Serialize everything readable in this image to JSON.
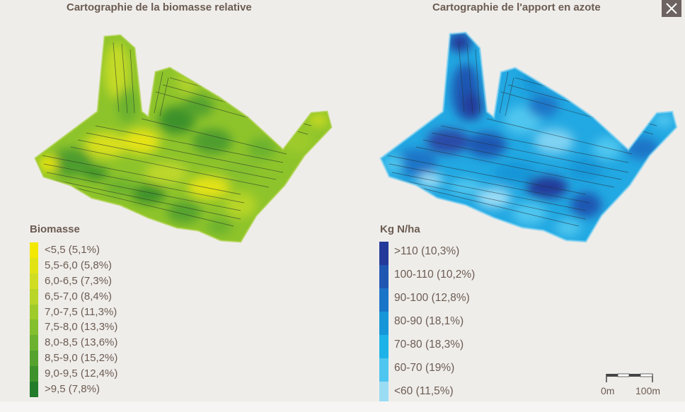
{
  "left_map": {
    "title": "Cartographie de la biomasse relative",
    "legend_title": "Biomasse",
    "legend": [
      {
        "label": "<5,5 (5,1%)",
        "color": "#f2e800"
      },
      {
        "label": "5,5-6,0 (5,8%)",
        "color": "#e2e315"
      },
      {
        "label": "6,0-6,5 (7,3%)",
        "color": "#d0dd23"
      },
      {
        "label": "6,5-7,0 (8,4%)",
        "color": "#b8d528"
      },
      {
        "label": "7,0-7,5 (11,3%)",
        "color": "#9ecb2a"
      },
      {
        "label": "7,5-8,0 (13,3%)",
        "color": "#84bf2d"
      },
      {
        "label": "8,0-8,5 (13,6%)",
        "color": "#6cb22f"
      },
      {
        "label": "8,5-9,0 (15,2%)",
        "color": "#55a32e"
      },
      {
        "label": "9,0-9,5 (12,4%)",
        "color": "#3d922b"
      },
      {
        "label": ">9,5 (7,8%)",
        "color": "#227c2b"
      }
    ]
  },
  "right_map": {
    "title": "Cartographie de l'apport en azote",
    "legend_title": "Kg N/ha",
    "legend": [
      {
        "label": ">110 (10,3%)",
        "color": "#233a9a"
      },
      {
        "label": "100-110 (10,2%)",
        "color": "#1f56b2"
      },
      {
        "label": "90-100 (12,8%)",
        "color": "#1a74c7"
      },
      {
        "label": "80-90 (18,1%)",
        "color": "#1596d8"
      },
      {
        "label": "70-80 (18,3%)",
        "color": "#1eb3e8"
      },
      {
        "label": "60-70 (19%)",
        "color": "#4fc6ef"
      },
      {
        "label": "<60 (11,5%)",
        "color": "#9bdcf5"
      }
    ]
  },
  "scale": {
    "start_label": "0m",
    "end_label": "100m"
  },
  "close_icon": "close-icon"
}
